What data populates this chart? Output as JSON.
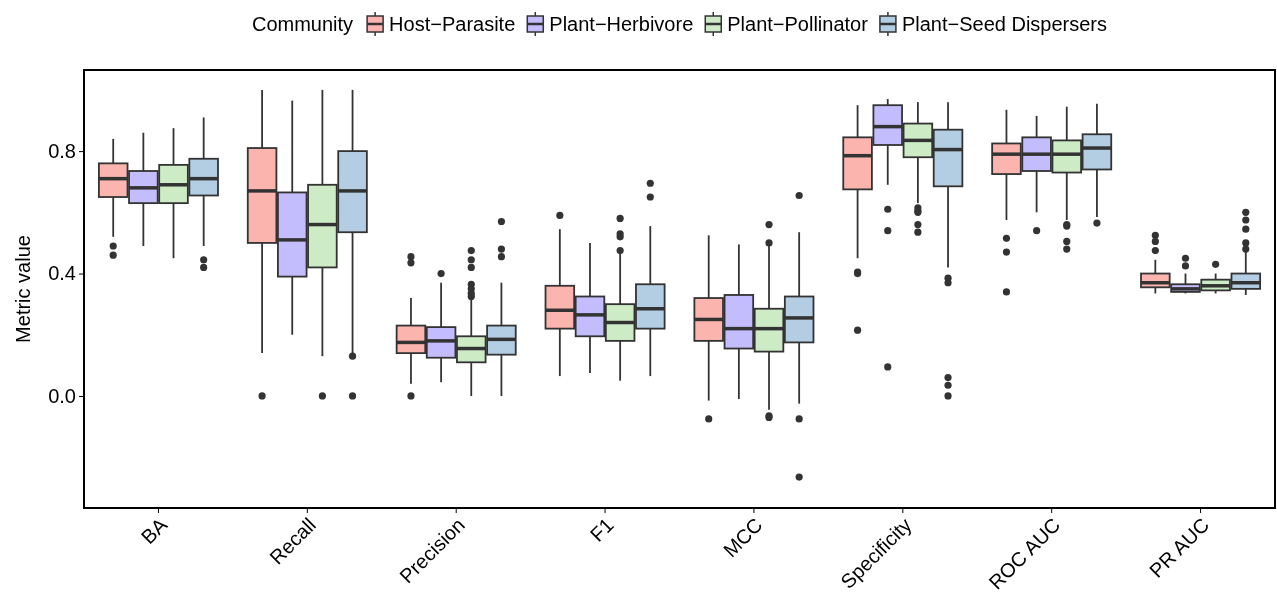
{
  "chart_data": {
    "type": "box",
    "ylabel": "Metric value",
    "legend_title": "Community",
    "legend": "top",
    "categories": [
      "BA",
      "Recall",
      "Precision",
      "F1",
      "MCC",
      "Specificity",
      "ROC AUC",
      "PR AUC"
    ],
    "ylim": [
      -0.366,
      1.065
    ],
    "yticks": [
      {
        "value": 0,
        "label": "0.0"
      },
      {
        "value": 0.4,
        "label": "0.4"
      },
      {
        "value": 0.8,
        "label": "0.8"
      }
    ],
    "grid": false,
    "series": [
      {
        "name": "Host−Parasite",
        "color": "#fbb4ae",
        "boxes": [
          {
            "low": 0.52,
            "q1": 0.65,
            "median": 0.71,
            "q3": 0.76,
            "high": 0.84,
            "outliers": [
              0.49,
              0.46
            ]
          },
          {
            "low": 0.14,
            "q1": 0.5,
            "median": 0.67,
            "q3": 0.81,
            "high": 1.0,
            "outliers": [
              0.0
            ]
          },
          {
            "low": 0.04,
            "q1": 0.14,
            "median": 0.175,
            "q3": 0.23,
            "high": 0.32,
            "outliers": [
              0.455,
              0.435,
              0.0
            ]
          },
          {
            "low": 0.065,
            "q1": 0.22,
            "median": 0.28,
            "q3": 0.36,
            "high": 0.545,
            "outliers": [
              0.59
            ]
          },
          {
            "low": -0.015,
            "q1": 0.18,
            "median": 0.25,
            "q3": 0.32,
            "high": 0.525,
            "outliers": [
              -0.075
            ]
          },
          {
            "low": 0.45,
            "q1": 0.675,
            "median": 0.785,
            "q3": 0.845,
            "high": 0.95,
            "outliers": [
              0.405,
              0.4,
              0.215
            ]
          },
          {
            "low": 0.575,
            "q1": 0.725,
            "median": 0.79,
            "q3": 0.825,
            "high": 0.935,
            "outliers": [
              0.515,
              0.47,
              0.34
            ]
          },
          {
            "low": 0.335,
            "q1": 0.355,
            "median": 0.37,
            "q3": 0.4,
            "high": 0.445,
            "outliers": [
              0.525,
              0.505,
              0.475
            ]
          }
        ]
      },
      {
        "name": "Plant−Herbivore",
        "color": "#c3bcfd",
        "boxes": [
          {
            "low": 0.49,
            "q1": 0.63,
            "median": 0.68,
            "q3": 0.735,
            "high": 0.86
          },
          {
            "low": 0.2,
            "q1": 0.39,
            "median": 0.51,
            "q3": 0.665,
            "high": 0.965
          },
          {
            "low": 0.045,
            "q1": 0.125,
            "median": 0.18,
            "q3": 0.225,
            "high": 0.37,
            "outliers": [
              0.4
            ]
          },
          {
            "low": 0.075,
            "q1": 0.195,
            "median": 0.265,
            "q3": 0.325,
            "high": 0.5
          },
          {
            "low": -0.01,
            "q1": 0.155,
            "median": 0.22,
            "q3": 0.33,
            "high": 0.495
          },
          {
            "low": 0.69,
            "q1": 0.82,
            "median": 0.88,
            "q3": 0.95,
            "high": 0.97,
            "outliers": [
              0.61,
              0.54,
              0.095
            ]
          },
          {
            "low": 0.6,
            "q1": 0.735,
            "median": 0.79,
            "q3": 0.845,
            "high": 0.915,
            "outliers": [
              0.54
            ]
          },
          {
            "low": 0.335,
            "q1": 0.34,
            "median": 0.35,
            "q3": 0.365,
            "high": 0.4,
            "outliers": [
              0.45,
              0.425
            ]
          }
        ]
      },
      {
        "name": "Plant−Pollinator",
        "color": "#cdebc5",
        "boxes": [
          {
            "low": 0.45,
            "q1": 0.63,
            "median": 0.69,
            "q3": 0.755,
            "high": 0.875
          },
          {
            "low": 0.13,
            "q1": 0.42,
            "median": 0.56,
            "q3": 0.69,
            "high": 1.0,
            "outliers": [
              0.0
            ]
          },
          {
            "low": 0.0,
            "q1": 0.11,
            "median": 0.155,
            "q3": 0.195,
            "high": 0.315,
            "outliers": [
              0.475,
              0.445,
              0.42,
              0.365,
              0.35,
              0.335,
              0.325
            ]
          },
          {
            "low": 0.05,
            "q1": 0.18,
            "median": 0.24,
            "q3": 0.3,
            "high": 0.47,
            "outliers": [
              0.58,
              0.53,
              0.52,
              0.475
            ]
          },
          {
            "low": -0.045,
            "q1": 0.145,
            "median": 0.22,
            "q3": 0.285,
            "high": 0.49,
            "outliers": [
              0.56,
              0.5,
              -0.065,
              -0.07
            ]
          },
          {
            "low": 0.63,
            "q1": 0.78,
            "median": 0.835,
            "q3": 0.89,
            "high": 0.96,
            "outliers": [
              0.615,
              0.605,
              0.6,
              0.56,
              0.535
            ]
          },
          {
            "low": 0.575,
            "q1": 0.73,
            "median": 0.79,
            "q3": 0.835,
            "high": 0.945,
            "outliers": [
              0.56,
              0.555,
              0.505,
              0.48
            ]
          },
          {
            "low": 0.335,
            "q1": 0.345,
            "median": 0.36,
            "q3": 0.38,
            "high": 0.4,
            "outliers": [
              0.43
            ]
          }
        ]
      },
      {
        "name": "Plant−Seed Dispersers",
        "color": "#b3cde3",
        "boxes": [
          {
            "low": 0.49,
            "q1": 0.655,
            "median": 0.71,
            "q3": 0.775,
            "high": 0.91,
            "outliers": [
              0.445,
              0.42
            ]
          },
          {
            "low": 0.14,
            "q1": 0.535,
            "median": 0.67,
            "q3": 0.8,
            "high": 1.0,
            "outliers": [
              0.13,
              0.0
            ]
          },
          {
            "low": 0.0,
            "q1": 0.135,
            "median": 0.185,
            "q3": 0.23,
            "high": 0.37,
            "outliers": [
              0.57,
              0.48,
              0.455
            ]
          },
          {
            "low": 0.065,
            "q1": 0.22,
            "median": 0.285,
            "q3": 0.365,
            "high": 0.555,
            "outliers": [
              0.695,
              0.65
            ]
          },
          {
            "low": -0.025,
            "q1": 0.175,
            "median": 0.255,
            "q3": 0.325,
            "high": 0.535,
            "outliers": [
              0.655,
              -0.075,
              -0.265
            ]
          },
          {
            "low": 0.42,
            "q1": 0.685,
            "median": 0.805,
            "q3": 0.87,
            "high": 0.96,
            "outliers": [
              0.385,
              0.37,
              0.06,
              0.035,
              0.0
            ]
          },
          {
            "low": 0.585,
            "q1": 0.74,
            "median": 0.81,
            "q3": 0.855,
            "high": 0.955,
            "outliers": [
              0.565
            ]
          },
          {
            "low": 0.33,
            "q1": 0.35,
            "median": 0.37,
            "q3": 0.4,
            "high": 0.47,
            "outliers": [
              0.6,
              0.575,
              0.545,
              0.5,
              0.48
            ]
          }
        ]
      }
    ]
  }
}
